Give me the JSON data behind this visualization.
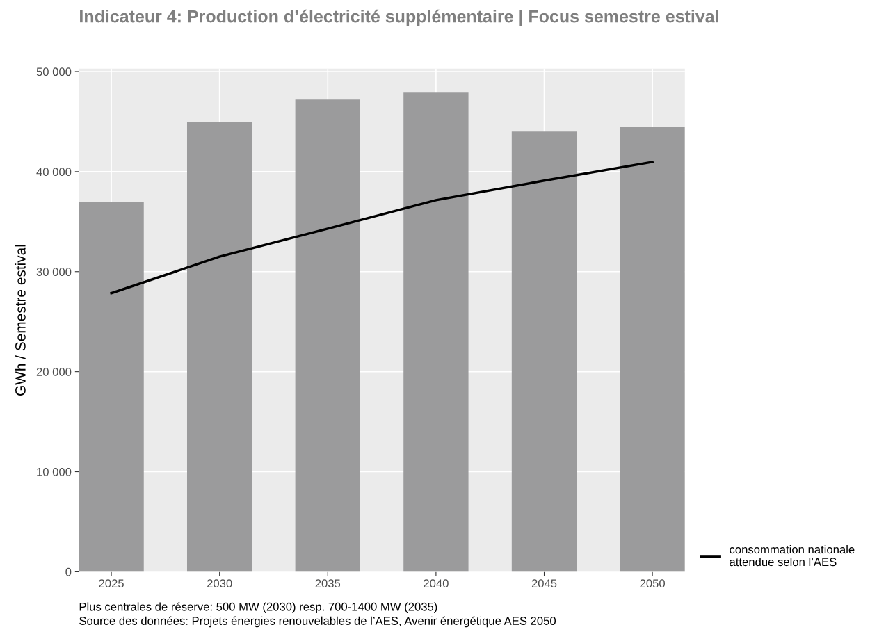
{
  "chart_data": {
    "type": "bar",
    "title": "Indicateur 4: Production d’électricité supplémentaire | Focus semestre estival",
    "ylabel": "GWh / Semestre estival",
    "categories": [
      "2025",
      "2030",
      "2035",
      "2040",
      "2045",
      "2050"
    ],
    "series": [
      {
        "color": "#9b9b9c",
        "values": [
          37000,
          45000,
          47200,
          47900,
          44000,
          44500
        ]
      },
      {
        "type": "line",
        "name": "consommation nationale\nattendue selon l’AES",
        "color": "#000000",
        "values": [
          27850,
          31500,
          34300,
          37150,
          39100,
          40970
        ]
      }
    ],
    "ylim": [
      0,
      50300
    ],
    "yticks": [
      {
        "value": 0,
        "label": "0"
      },
      {
        "value": 10000,
        "label": "10 000"
      },
      {
        "value": 20000,
        "label": "20 000"
      },
      {
        "value": 30000,
        "label": "30 000"
      },
      {
        "value": 40000,
        "label": "40 000"
      },
      {
        "value": 50000,
        "label": "50 000"
      }
    ],
    "grid": true,
    "legend": "right",
    "annotations": [
      "Plus centrales de réserve: 500 MW (2030) resp. 700-1400 MW (2035)",
      "Source des données: Projets énergies renouvelables de l’AES, Avenir énergétique AES 2050"
    ]
  }
}
